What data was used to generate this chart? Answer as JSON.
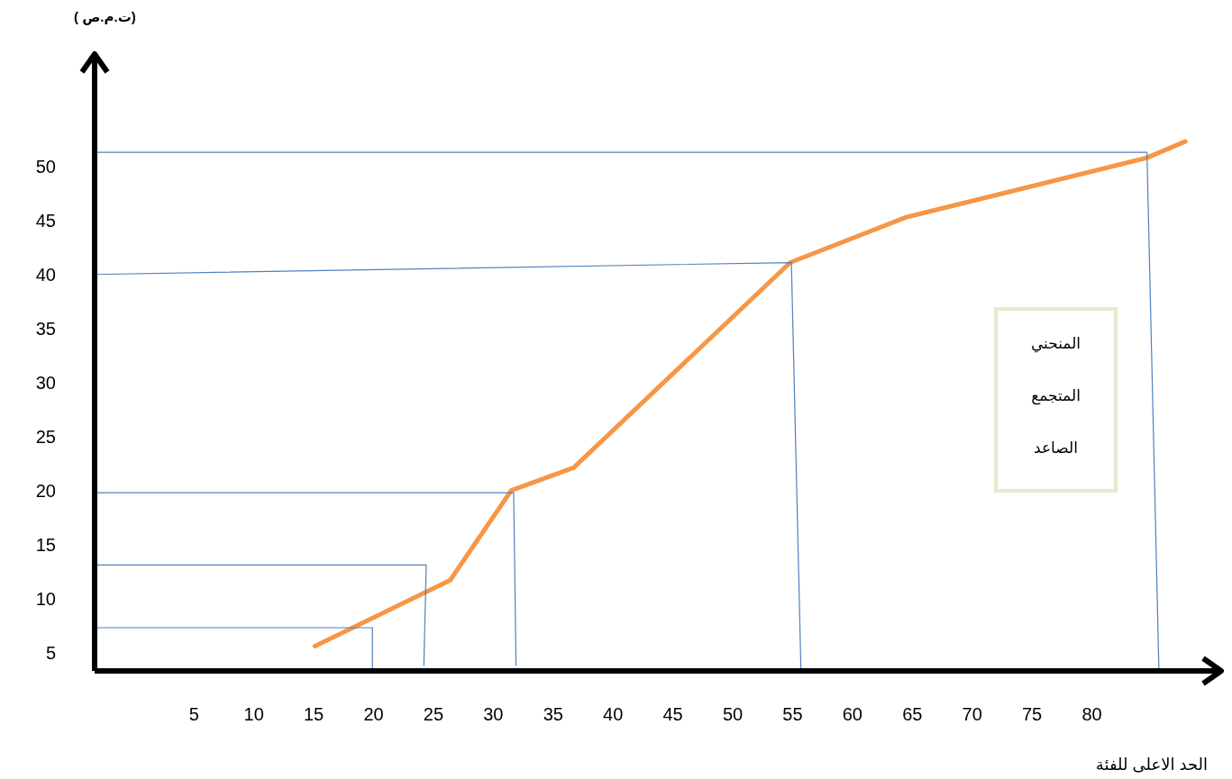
{
  "chart_data": {
    "type": "line",
    "xlabel": "الحد الاعلى للفئة",
    "ylabel": "(ت.م.ص )",
    "annotations": [
      "المنحني المتجمع الصاعد"
    ],
    "xlim": [
      -3.3,
      90.8
    ],
    "ylim": [
      3.3,
      60.4
    ],
    "xticks": [
      5,
      10,
      15,
      20,
      25,
      30,
      35,
      40,
      45,
      50,
      55,
      60,
      65,
      70,
      75,
      80
    ],
    "yticks": [
      5,
      10,
      15,
      20,
      25,
      30,
      35,
      40,
      45,
      50
    ],
    "marker": "none",
    "line_style": "solid",
    "series": [
      {
        "color": "#f79646",
        "x": [
          15.1,
          26.4,
          31.5,
          36.7,
          54.8,
          64.5,
          84.6,
          87.8
        ],
        "values": [
          5.6,
          11.7,
          20,
          22.1,
          41.1,
          45.3,
          50.8,
          52.3
        ]
      },
      {
        "color": "#4f81bd",
        "x": [
          -3.3,
          19.9,
          19.9
        ],
        "values": [
          7.3,
          7.3,
          3.3
        ]
      },
      {
        "color": "#4f81bd",
        "x": [
          -3.3,
          24.4,
          24.2
        ],
        "values": [
          13.1,
          13.1,
          3.8
        ]
      },
      {
        "color": "#4f81bd",
        "x": [
          -3.3,
          31.7,
          31.9
        ],
        "values": [
          19.8,
          19.8,
          3.8
        ]
      },
      {
        "color": "#4f81bd",
        "x": [
          -3.3,
          54.9,
          55.7
        ],
        "values": [
          40,
          41.1,
          3.3
        ]
      },
      {
        "color": "#4f81bd",
        "x": [
          -3.3,
          84.6,
          85.6
        ],
        "values": [
          51.3,
          51.3,
          3.3
        ]
      }
    ]
  }
}
